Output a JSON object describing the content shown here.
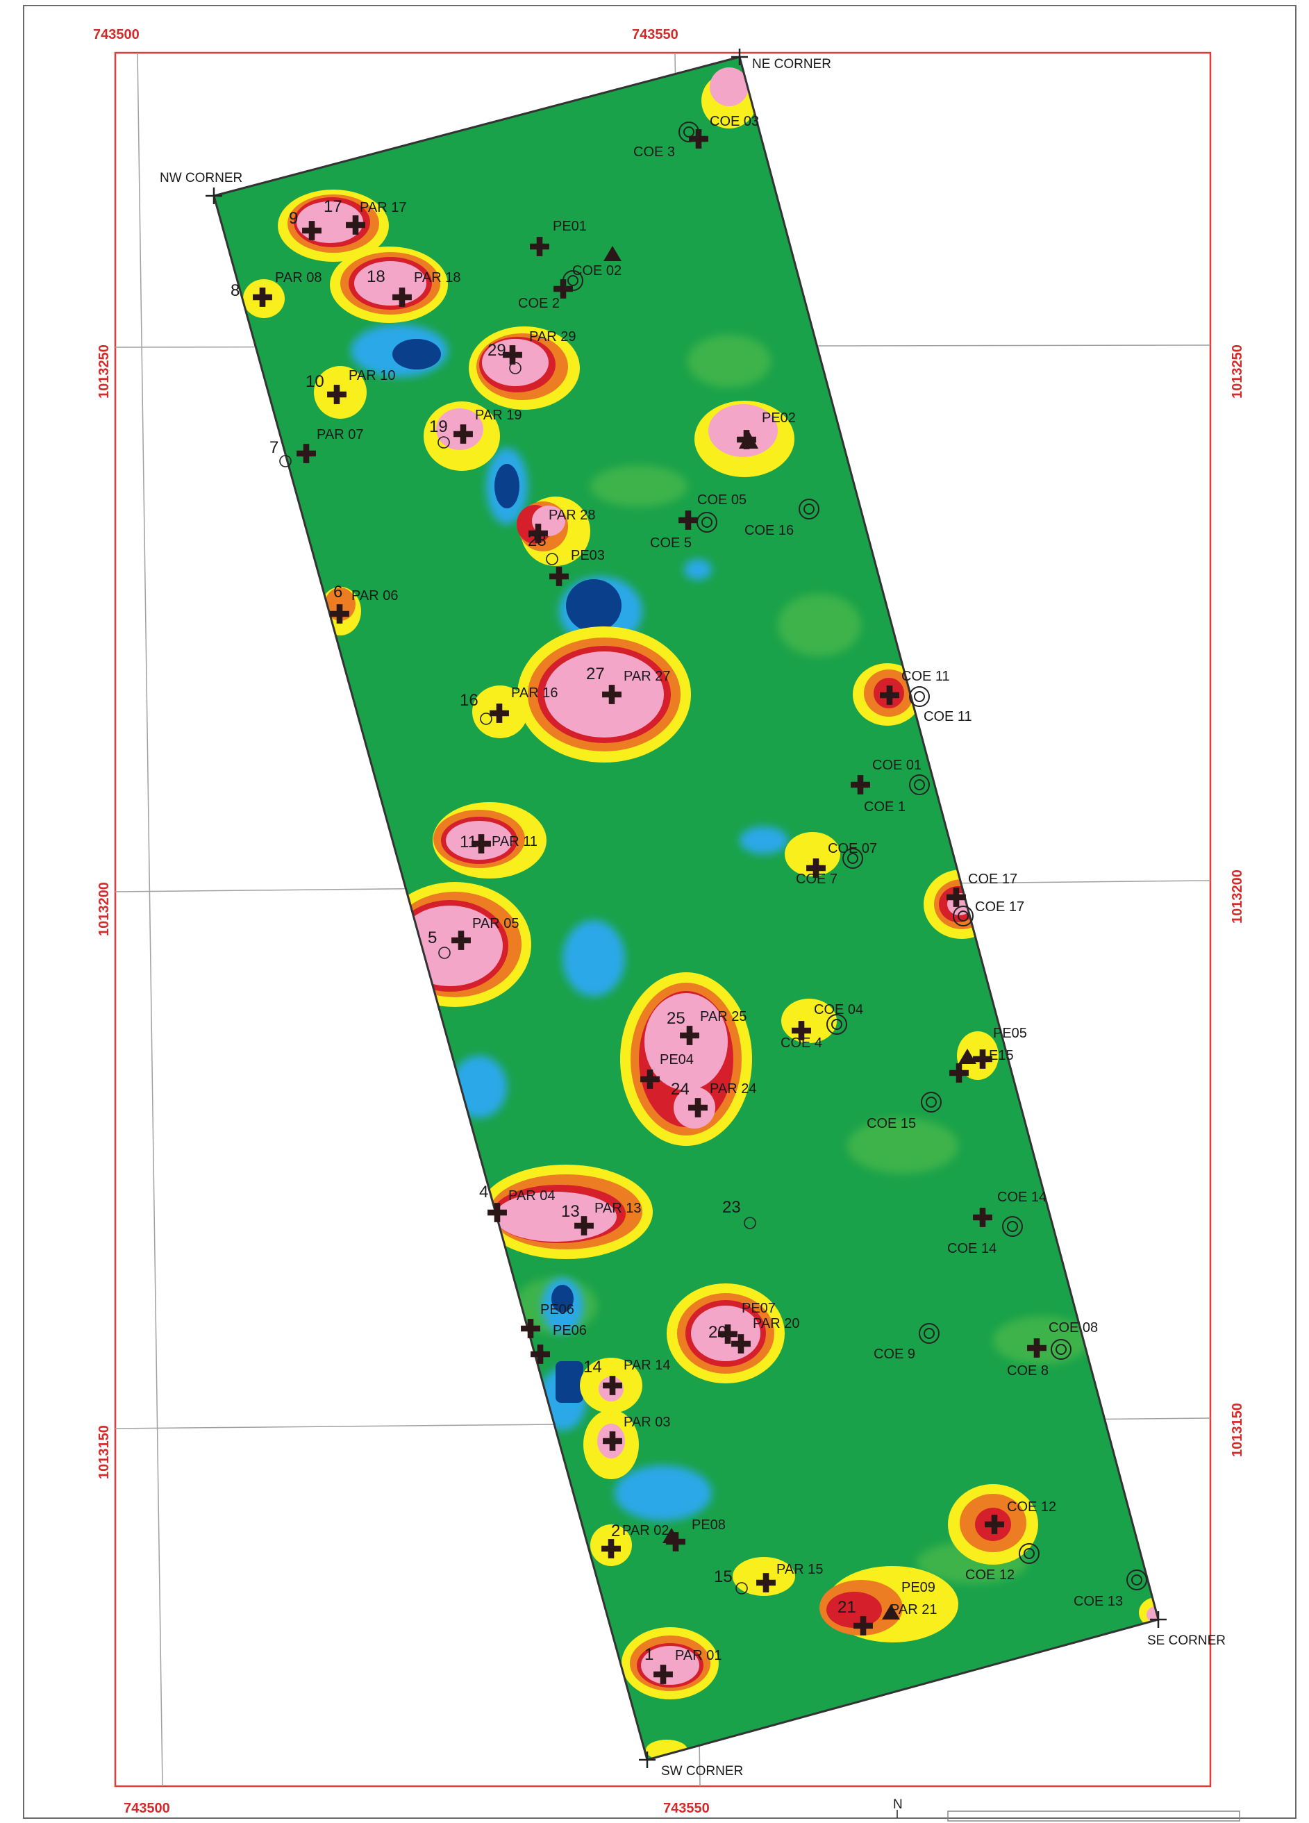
{
  "map": {
    "easting_labels": {
      "left_top": "743500",
      "center_top": "743550",
      "left_bottom": "743500",
      "center_bottom": "743550"
    },
    "northing_labels": [
      "1013250",
      "1013200",
      "1013150"
    ],
    "corners": {
      "nw": "NW CORNER",
      "ne": "NE CORNER",
      "se": "SE CORNER",
      "sw": "SW CORNER"
    },
    "north_arrow": "N",
    "colors": {
      "frame": "#e23b3b",
      "grid": "#9a9a9a",
      "survey_low": "#1aa24a",
      "survey_mid": "#5bc14b",
      "blue": "#29a8e8",
      "deep_blue": "#0a3f8c",
      "yellow": "#f8ef1c",
      "orange": "#ec7d22",
      "red": "#d51f2b",
      "pink": "#f3a6c8",
      "outline": "#333333"
    }
  },
  "labels": [
    {
      "name": "par-17",
      "text": "PAR 17"
    },
    {
      "name": "num-9",
      "text": "9"
    },
    {
      "name": "num-17",
      "text": "17"
    },
    {
      "name": "num-8",
      "text": "8"
    },
    {
      "name": "par-08",
      "text": "PAR 08"
    },
    {
      "name": "num-18",
      "text": "18"
    },
    {
      "name": "par-18",
      "text": "PAR 18"
    },
    {
      "name": "pe01",
      "text": "PE01"
    },
    {
      "name": "coe-02",
      "text": "COE 02"
    },
    {
      "name": "coe-2",
      "text": "COE 2"
    },
    {
      "name": "coe-03",
      "text": "COE 03"
    },
    {
      "name": "coe-3",
      "text": "COE 3"
    },
    {
      "name": "num-29",
      "text": "29"
    },
    {
      "name": "par-29",
      "text": "PAR 29"
    },
    {
      "name": "num-10",
      "text": "10"
    },
    {
      "name": "par-10",
      "text": "PAR 10"
    },
    {
      "name": "num-19",
      "text": "19"
    },
    {
      "name": "par-19",
      "text": "PAR 19"
    },
    {
      "name": "num-7",
      "text": "7"
    },
    {
      "name": "par-07",
      "text": "PAR 07"
    },
    {
      "name": "pe02",
      "text": "PE02"
    },
    {
      "name": "par-28",
      "text": "PAR 28"
    },
    {
      "name": "num-28",
      "text": "28"
    },
    {
      "name": "pe03",
      "text": "PE03"
    },
    {
      "name": "coe-05",
      "text": "COE 05"
    },
    {
      "name": "coe-5",
      "text": "COE 5"
    },
    {
      "name": "coe-16",
      "text": "COE 16"
    },
    {
      "name": "num-6",
      "text": "6"
    },
    {
      "name": "par-06",
      "text": "PAR 06"
    },
    {
      "name": "num-27",
      "text": "27"
    },
    {
      "name": "par-27",
      "text": "PAR 27"
    },
    {
      "name": "num-16",
      "text": "16"
    },
    {
      "name": "par-16",
      "text": "PAR 16"
    },
    {
      "name": "coe-11-a",
      "text": "COE 11"
    },
    {
      "name": "coe-11-b",
      "text": "COE 11"
    },
    {
      "name": "coe-01",
      "text": "COE 01"
    },
    {
      "name": "coe-1",
      "text": "COE 1"
    },
    {
      "name": "num-11",
      "text": "11"
    },
    {
      "name": "par-11",
      "text": "PAR 11"
    },
    {
      "name": "coe-07",
      "text": "COE 07"
    },
    {
      "name": "coe-7",
      "text": "COE 7"
    },
    {
      "name": "coe-17-a",
      "text": "COE 17"
    },
    {
      "name": "coe-17-b",
      "text": "COE 17"
    },
    {
      "name": "num-5",
      "text": "5"
    },
    {
      "name": "par-05",
      "text": "PAR 05"
    },
    {
      "name": "num-25",
      "text": "25"
    },
    {
      "name": "par-25",
      "text": "PAR 25"
    },
    {
      "name": "coe-04",
      "text": "COE 04"
    },
    {
      "name": "coe-4",
      "text": "COE 4"
    },
    {
      "name": "pe05",
      "text": "PE05"
    },
    {
      "name": "coe-15-b",
      "text": "E15"
    },
    {
      "name": "pe04",
      "text": "PE04"
    },
    {
      "name": "num-24",
      "text": "24"
    },
    {
      "name": "par-24",
      "text": "PAR 24"
    },
    {
      "name": "coe-15",
      "text": "COE 15"
    },
    {
      "name": "num-4",
      "text": "4"
    },
    {
      "name": "par-04",
      "text": "PAR 04"
    },
    {
      "name": "num-13",
      "text": "13"
    },
    {
      "name": "par-13",
      "text": "PAR 13"
    },
    {
      "name": "num-23",
      "text": "23"
    },
    {
      "name": "coe-14-a",
      "text": "COE 14"
    },
    {
      "name": "coe-14-b",
      "text": "COE 14"
    },
    {
      "name": "pe06-a",
      "text": "PE06"
    },
    {
      "name": "pe06-b",
      "text": "PE06"
    },
    {
      "name": "pe07",
      "text": "PE07"
    },
    {
      "name": "num-20",
      "text": "20"
    },
    {
      "name": "par-20",
      "text": "PAR 20"
    },
    {
      "name": "coe-9",
      "text": "COE 9"
    },
    {
      "name": "coe-08",
      "text": "COE 08"
    },
    {
      "name": "coe-8",
      "text": "COE 8"
    },
    {
      "name": "num-14",
      "text": "14"
    },
    {
      "name": "par-14",
      "text": "PAR 14"
    },
    {
      "name": "par-03",
      "text": "PAR 03"
    },
    {
      "name": "coe-12-a",
      "text": "COE 12"
    },
    {
      "name": "coe-12-b",
      "text": "COE 12"
    },
    {
      "name": "num-2",
      "text": "2"
    },
    {
      "name": "par-02",
      "text": "PAR 02"
    },
    {
      "name": "pe08",
      "text": "PE08"
    },
    {
      "name": "num-15",
      "text": "15"
    },
    {
      "name": "par-15",
      "text": "PAR 15"
    },
    {
      "name": "pe09",
      "text": "PE09"
    },
    {
      "name": "num-21",
      "text": "21"
    },
    {
      "name": "par-21",
      "text": "PAR 21"
    },
    {
      "name": "coe-13",
      "text": "COE 13"
    },
    {
      "name": "num-1",
      "text": "1"
    },
    {
      "name": "par-01",
      "text": "PAR 01"
    }
  ]
}
